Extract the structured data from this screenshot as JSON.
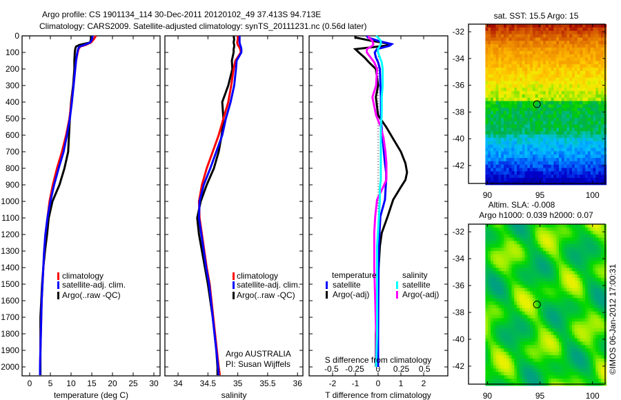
{
  "title": {
    "line1": "Argo profile: CS 1901134_114 30-Dec-2011 20120102_49 37.413S 94.713E",
    "line2": "Climatology: CARS2009. Satellite-adjusted climatology: synTS_20111231.nc (0.56d later)"
  },
  "colors": {
    "climatology": "#ff0000",
    "satellite": "#0000ff",
    "argo": "#000000",
    "salinity_satellite": "#00ffff",
    "salinity_argo": "#ff00ff"
  },
  "chart_data": [
    {
      "type": "line",
      "xlabel": "temperature (deg C)",
      "ylabel": "",
      "xlim": [
        -1.83,
        31.5
      ],
      "ylim": [
        0,
        2054
      ],
      "xticks": [
        0,
        5,
        10,
        15,
        20,
        25,
        30
      ],
      "yticks": [
        0,
        100,
        200,
        300,
        400,
        500,
        600,
        700,
        800,
        900,
        1000,
        1100,
        1200,
        1300,
        1400,
        1500,
        1600,
        1700,
        1800,
        1900,
        2000
      ],
      "depth": [
        0,
        20,
        40,
        55,
        65,
        80,
        100,
        150,
        200,
        300,
        400,
        500,
        600,
        700,
        800,
        900,
        1000,
        1100,
        1200,
        1300,
        1400,
        1500,
        1600,
        1700,
        1800,
        1900,
        2000,
        2050
      ],
      "legend": [
        "climatology",
        "satellite-adj. clim.",
        "Argo(..raw -QC)"
      ],
      "series": [
        {
          "name": "Argo(..raw -QC)",
          "color": "#000000",
          "values": [
            14.8,
            14.8,
            14.6,
            12.0,
            11.2,
            11.0,
            10.9,
            10.8,
            10.8,
            10.5,
            10.0,
            9.7,
            9.5,
            9.3,
            8.4,
            7.2,
            5.5,
            4.6,
            4.2,
            3.7,
            3.3,
            3.0,
            2.8,
            2.6,
            2.6,
            2.6,
            2.6,
            2.6
          ]
        },
        {
          "name": "climatology",
          "color": "#ff0000",
          "values": [
            16.0,
            15.5,
            14.8,
            13.5,
            12.2,
            11.8,
            11.6,
            11.2,
            11.0,
            10.6,
            10.1,
            9.6,
            8.8,
            7.8,
            6.6,
            5.6,
            4.8,
            4.3,
            3.8,
            3.5,
            3.3,
            3.1,
            2.9,
            2.8,
            2.7,
            2.6,
            2.5,
            2.5
          ]
        },
        {
          "name": "satellite-adj. clim.",
          "color": "#0000ff",
          "values": [
            15.2,
            15.1,
            14.6,
            13.2,
            12.0,
            11.7,
            11.5,
            11.2,
            11.0,
            10.6,
            10.2,
            9.7,
            9.0,
            8.2,
            7.0,
            5.9,
            5.0,
            4.3,
            3.8,
            3.5,
            3.3,
            3.1,
            2.9,
            2.8,
            2.7,
            2.6,
            2.5,
            2.5
          ]
        }
      ]
    },
    {
      "type": "line",
      "xlabel": "salinity",
      "xlim": [
        33.78,
        36.09
      ],
      "ylim": [
        0,
        2054
      ],
      "xticks": [
        34,
        34.5,
        35,
        35.5,
        36
      ],
      "depth": [
        0,
        20,
        40,
        55,
        65,
        80,
        100,
        150,
        200,
        300,
        400,
        500,
        600,
        700,
        800,
        900,
        1000,
        1100,
        1200,
        1300,
        1400,
        1500,
        1600,
        1700,
        1800,
        1900,
        2000,
        2050
      ],
      "legend": [
        "climatology",
        "satellite-adj. clim.",
        "Argo(..raw -QC)"
      ],
      "annotation": [
        "Argo AUSTRALIA",
        "PI: Susan Wijffels"
      ],
      "series": [
        {
          "name": "Argo(..raw -QC)",
          "color": "#000000",
          "values": [
            34.93,
            34.94,
            34.93,
            34.94,
            34.94,
            34.93,
            34.93,
            34.9,
            34.91,
            34.84,
            34.74,
            34.76,
            34.73,
            34.68,
            34.6,
            34.48,
            34.38,
            34.32,
            34.35,
            34.4,
            34.45,
            34.5,
            34.54,
            34.58,
            34.61,
            34.64,
            34.66,
            34.66
          ]
        },
        {
          "name": "climatology",
          "color": "#ff0000",
          "values": [
            35.0,
            35.0,
            34.99,
            35.0,
            35.02,
            35.04,
            35.05,
            34.96,
            34.93,
            34.89,
            34.84,
            34.76,
            34.68,
            34.58,
            34.48,
            34.4,
            34.35,
            34.36,
            34.4,
            34.44,
            34.48,
            34.53,
            34.56,
            34.59,
            34.62,
            34.65,
            34.68,
            34.7
          ]
        },
        {
          "name": "satellite-adj. clim.",
          "color": "#0000ff",
          "values": [
            35.03,
            35.03,
            35.03,
            35.04,
            35.05,
            35.06,
            35.06,
            34.98,
            34.97,
            34.94,
            34.88,
            34.8,
            34.74,
            34.64,
            34.54,
            34.43,
            34.36,
            34.35,
            34.39,
            34.43,
            34.47,
            34.52,
            34.55,
            34.58,
            34.61,
            34.64,
            34.67,
            34.68
          ]
        }
      ]
    },
    {
      "type": "line",
      "xlabel": "T difference from climatology",
      "x2label": "S difference from climatology",
      "xlim_T": [
        -3.03,
        3.06
      ],
      "xlim_S": [
        -0.74,
        0.75
      ],
      "ylim": [
        0,
        2054
      ],
      "xticks_T": [
        -2,
        -1,
        0,
        1,
        2
      ],
      "xticks_S": [
        -0.5,
        -0.25,
        0,
        0.25,
        0.5
      ],
      "depth": [
        0,
        10,
        30,
        50,
        60,
        80,
        100,
        130,
        160,
        200,
        300,
        370,
        480,
        550,
        620,
        700,
        770,
        825,
        870,
        920,
        990,
        1090,
        1190,
        1270,
        1400,
        1600,
        1800,
        2000
      ],
      "legend": {
        "temperature": {
          "title": "temperature",
          "items": [
            "satellite",
            "Argo(-adj)"
          ]
        },
        "salinity": {
          "title": "salinity",
          "items": [
            "satellite",
            "Argo(-adj)"
          ]
        }
      },
      "series": [
        {
          "name": "temperature Argo(-adj)",
          "axis": "T",
          "color": "#000000",
          "values": [
            -1.0,
            -1.0,
            -0.3,
            0.6,
            0.3,
            -1.0,
            -0.85,
            -0.6,
            -0.4,
            -0.1,
            0.0,
            -0.1,
            0.0,
            0.35,
            0.65,
            1.0,
            1.2,
            1.27,
            1.2,
            0.97,
            0.66,
            0.42,
            0.16,
            0.08,
            0.02,
            -0.05,
            -0.1,
            -0.1
          ]
        },
        {
          "name": "temperature satellite",
          "axis": "T",
          "color": "#0000ff",
          "values": [
            -0.5,
            -0.45,
            0.0,
            0.6,
            0.5,
            -0.05,
            -0.15,
            -0.1,
            0.0,
            0.08,
            0.1,
            0.12,
            0.12,
            0.15,
            0.2,
            0.25,
            0.3,
            0.35,
            0.35,
            0.33,
            0.3,
            0.1,
            0.06,
            0.03,
            0.02,
            0.01,
            0.0,
            0.0
          ]
        },
        {
          "name": "salinity Argo(-adj)",
          "axis": "S",
          "color": "#ff00ff",
          "values": [
            -0.1,
            -0.1,
            -0.06,
            -0.05,
            -0.06,
            -0.12,
            -0.12,
            -0.08,
            -0.04,
            -0.01,
            -0.02,
            -0.06,
            -0.02,
            0.03,
            0.06,
            0.08,
            0.09,
            0.09,
            0.09,
            0.05,
            -0.01,
            -0.03,
            -0.04,
            -0.04,
            -0.04,
            -0.03,
            -0.02,
            -0.02
          ]
        },
        {
          "name": "salinity satellite",
          "axis": "S",
          "color": "#00ffff",
          "values": [
            -0.02,
            0.0,
            0.03,
            0.03,
            0.02,
            0.0,
            0.0,
            0.02,
            0.04,
            0.05,
            0.05,
            0.04,
            0.04,
            0.03,
            0.03,
            0.03,
            0.03,
            0.03,
            0.03,
            0.02,
            0.02,
            0.01,
            0.0,
            -0.01,
            -0.01,
            -0.01,
            -0.01,
            -0.02
          ]
        }
      ]
    },
    {
      "type": "heatmap",
      "title": "sat. SST: 15.5 Argo: 15",
      "variable": "SST",
      "xlim": [
        88.2,
        101.2
      ],
      "ylim": [
        -43.34,
        -31.43
      ],
      "data_lon_range": [
        89.8,
        101.2
      ],
      "xticks": [
        90,
        95,
        100
      ],
      "yticks": [
        -32,
        -34,
        -36,
        -38,
        -40,
        -42
      ],
      "marker": {
        "lon": 94.713,
        "lat": -37.413
      }
    },
    {
      "type": "heatmap",
      "title": "Altim. SLA: -0.008",
      "subtitle": "Argo h1000: 0.039 h2000: 0.07",
      "variable": "SLA",
      "xlim": [
        88.2,
        101.2
      ],
      "ylim": [
        -43.34,
        -31.43
      ],
      "data_lon_range": [
        89.8,
        101.2
      ],
      "xticks": [
        90,
        95,
        100
      ],
      "yticks": [
        -32,
        -34,
        -36,
        -38,
        -40,
        -42
      ],
      "marker": {
        "lon": 94.713,
        "lat": -37.413
      }
    }
  ],
  "credit": "©IMOS 06-Jan-2012 17:00:31"
}
